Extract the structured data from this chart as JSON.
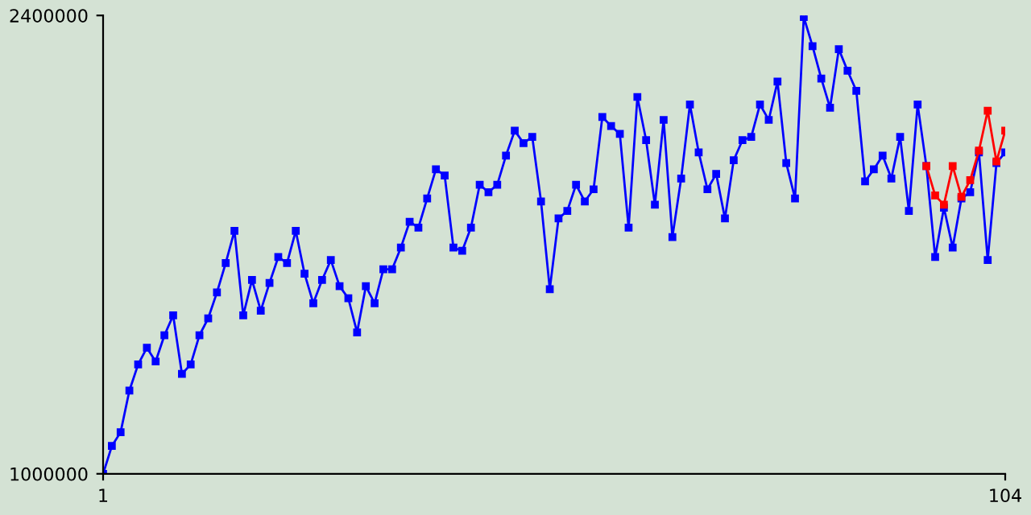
{
  "chart_data": {
    "type": "line",
    "x": [
      1,
      2,
      3,
      4,
      5,
      6,
      7,
      8,
      9,
      10,
      11,
      12,
      13,
      14,
      15,
      16,
      17,
      18,
      19,
      20,
      21,
      22,
      23,
      24,
      25,
      26,
      27,
      28,
      29,
      30,
      31,
      32,
      33,
      34,
      35,
      36,
      37,
      38,
      39,
      40,
      41,
      42,
      43,
      44,
      45,
      46,
      47,
      48,
      49,
      50,
      51,
      52,
      53,
      54,
      55,
      56,
      57,
      58,
      59,
      60,
      61,
      62,
      63,
      64,
      65,
      66,
      67,
      68,
      69,
      70,
      71,
      72,
      73,
      74,
      75,
      76,
      77,
      78,
      79,
      80,
      81,
      82,
      83,
      84,
      85,
      86,
      87,
      88,
      89,
      90,
      91,
      92,
      93,
      94,
      95,
      96,
      97,
      98,
      99,
      100,
      101,
      102,
      103,
      104
    ],
    "series": [
      {
        "color": "#0000ff",
        "values": [
          1000000,
          1085000,
          1127000,
          1254000,
          1334000,
          1385000,
          1343000,
          1423000,
          1484000,
          1305000,
          1334000,
          1423000,
          1475000,
          1554000,
          1644000,
          1742000,
          1484000,
          1592000,
          1498000,
          1583000,
          1662000,
          1644000,
          1742000,
          1611000,
          1521000,
          1592000,
          1653000,
          1573000,
          1536000,
          1432000,
          1573000,
          1521000,
          1625000,
          1625000,
          1691000,
          1770000,
          1752000,
          1841000,
          1930000,
          1911000,
          1691000,
          1681000,
          1752000,
          1883000,
          1860000,
          1883000,
          1972000,
          2048000,
          2010000,
          2029000,
          1832000,
          1564000,
          1780000,
          1803000,
          1883000,
          1832000,
          1869000,
          2090000,
          2062000,
          2038000,
          1752000,
          2151000,
          2019000,
          1822000,
          2081000,
          1723000,
          1902000,
          2128000,
          1982000,
          1869000,
          1916000,
          1780000,
          1958000,
          2019000,
          2029000,
          2128000,
          2081000,
          2198000,
          1949000,
          1841000,
          2395000,
          2306000,
          2207000,
          2118000,
          2297000,
          2231000,
          2170000,
          1893000,
          1930000,
          1972000,
          1902000,
          2029000,
          1803000,
          2128000,
          1940000,
          1662000,
          1813000,
          1691000,
          1841000,
          1860000,
          1982000,
          1653000,
          1949000,
          1982000
        ]
      },
      {
        "color": "#ff0000",
        "values": [
          null,
          null,
          null,
          null,
          null,
          null,
          null,
          null,
          null,
          null,
          null,
          null,
          null,
          null,
          null,
          null,
          null,
          null,
          null,
          null,
          null,
          null,
          null,
          null,
          null,
          null,
          null,
          null,
          null,
          null,
          null,
          null,
          null,
          null,
          null,
          null,
          null,
          null,
          null,
          null,
          null,
          null,
          null,
          null,
          null,
          null,
          null,
          null,
          null,
          null,
          null,
          null,
          null,
          null,
          null,
          null,
          null,
          null,
          null,
          null,
          null,
          null,
          null,
          null,
          null,
          null,
          null,
          null,
          null,
          null,
          null,
          null,
          null,
          null,
          null,
          null,
          null,
          null,
          null,
          null,
          null,
          null,
          null,
          null,
          null,
          null,
          null,
          null,
          null,
          null,
          null,
          null,
          null,
          null,
          1940000,
          1850000,
          1822000,
          1940000,
          1846000,
          1897000,
          1987000,
          2109000,
          1954000,
          2048000
        ]
      }
    ],
    "xlim": [
      1,
      104
    ],
    "xticks": [
      1,
      104
    ],
    "ylim": [
      1000000,
      2400000
    ],
    "yticks": [
      1000000,
      2400000
    ],
    "marker": "square",
    "grid": false
  }
}
